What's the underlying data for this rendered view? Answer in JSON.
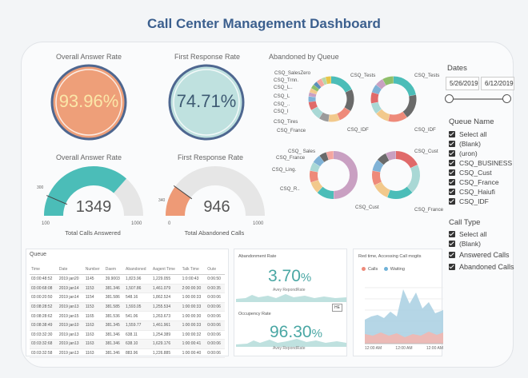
{
  "title": "Call Center Management Dashboard",
  "kpi": {
    "answer_rate_label": "Overall Answer Rate",
    "answer_rate_value": "93.96%",
    "first_response_label": "First Response Rate",
    "first_response_value": "74.71%"
  },
  "gauges": {
    "left": {
      "title": "Overall Answer Rate",
      "value": "1349",
      "caption": "Total Calls Answered",
      "min": "100",
      "max": "1000",
      "marker": "300",
      "fraction": 0.73
    },
    "right": {
      "title": "First Response Rate",
      "value": "946",
      "caption": "Total Abandoned Calls",
      "min": "0",
      "max": "1000",
      "marker": "340",
      "fraction": 0.2
    }
  },
  "abandoned": {
    "title": "Abandoned by Queue",
    "d1_labels": [
      "CSQ_SalesZero",
      "CSQ_Trnn.",
      "CSQ_L..",
      "CSQ_L",
      "CSQ_..",
      "CSQ_I",
      "CSQ_Tires",
      "CSQ_France",
      "CSQ_Tests",
      "CSQ_IDF"
    ],
    "d2_labels": [
      "CSQ_Tests",
      "CSQ_IDF"
    ],
    "d3_labels": [
      "CSQ_ Sales",
      "CSQ_France",
      "CSQ_Ling.",
      "CSQ_R..",
      "CSQ_Cust"
    ],
    "d4_labels": [
      "CSQ_Cust",
      "CSQ_France"
    ]
  },
  "sidebar": {
    "dates_title": "Dates",
    "date_from": "5/26/2019",
    "date_to": "6/12/2019",
    "queue_title": "Queue Name",
    "queue_items": [
      "Select all",
      "(Blank)",
      "(uron)",
      "CSQ_BUSINESS",
      "CSQ_Cust",
      "CSQ_France",
      "CSQ_Haiufi",
      "CSQ_IDF"
    ],
    "calltype_title": "Call Type",
    "calltype_items": [
      "Select all",
      "(Blank)",
      "Answered Calls",
      "Abandoned Calls"
    ]
  },
  "queue_table": {
    "title": "Queue",
    "columns": [
      "Time",
      "Date",
      "Number",
      "Daem",
      "Abandoned",
      "Aagent Time",
      "Talk Time",
      "Oute"
    ],
    "rows": [
      [
        "03:00:48:52",
        "2019 jan20",
        "1145",
        "39.9003",
        "1,823.96",
        "1,229.055",
        "1:0:00:43",
        "0:06:50"
      ],
      [
        "03:00:68:08",
        "2019 jan14",
        "1153",
        "381.346",
        "1,507.86",
        "1,461.079",
        "2:00:00:30",
        "0:00:35"
      ],
      [
        "03:00:20:50",
        "2019 jan14",
        "1154",
        "381.586",
        "548.16",
        "1,862.524",
        "1:00:00:33",
        "0:00:06"
      ],
      [
        "03:08:28:52",
        "2019 jan13",
        "1153",
        "381.585",
        "1,593.05",
        "1,255.534",
        "1:00:00:33",
        "0:00:06"
      ],
      [
        "03:08:28:62",
        "2019 jan15",
        "1165",
        "381.536",
        "541.06",
        "1,263.673",
        "1:00:00:30",
        "0:00:06"
      ],
      [
        "03:08:38:49",
        "2019 jan10",
        "1163",
        "381.345",
        "1,559.77",
        "1,461.961",
        "1:00:00:33",
        "0:00:06"
      ],
      [
        "03:03:32:30",
        "2019 jan13",
        "1163",
        "381.346",
        "638.11",
        "1,254.389",
        "1:00:00:32",
        "0:00:06"
      ],
      [
        "03:03:32:68",
        "2019 jan13",
        "1163",
        "381.346",
        "638.10",
        "1,629.176",
        "1:00:00:41",
        "0:00:06"
      ],
      [
        "03:03:32:58",
        "2019 jan13",
        "1163",
        "381.346",
        "883.96",
        "1,226.885",
        "1:00:00:40",
        "0:00:06"
      ]
    ]
  },
  "abandon_rate": {
    "title": "Abandonment Rate",
    "value": "3.70",
    "unit": "%",
    "caption": "Avey RepondRate",
    "badge": "HE"
  },
  "occupancy": {
    "title": "Occupency Rate",
    "value": "96.30",
    "unit": "%",
    "caption": "Avey RepondRate"
  },
  "realtime": {
    "title": "Red time, Accessing Call mogits",
    "legend": [
      "Calls",
      "Waiting"
    ],
    "x_ticks": [
      "12:00 AM",
      "12:00 AM",
      "12:00 AM"
    ]
  },
  "colors": {
    "title": "#3b5f8e",
    "orange_fill": "#ee9f79",
    "teal_fill": "#bfe1df",
    "ring": "#4e6790",
    "teal": "#4bbdb8",
    "orange": "#ee9a76",
    "blue_area": "#a8cfe2",
    "red_area": "#f2b7b0"
  }
}
